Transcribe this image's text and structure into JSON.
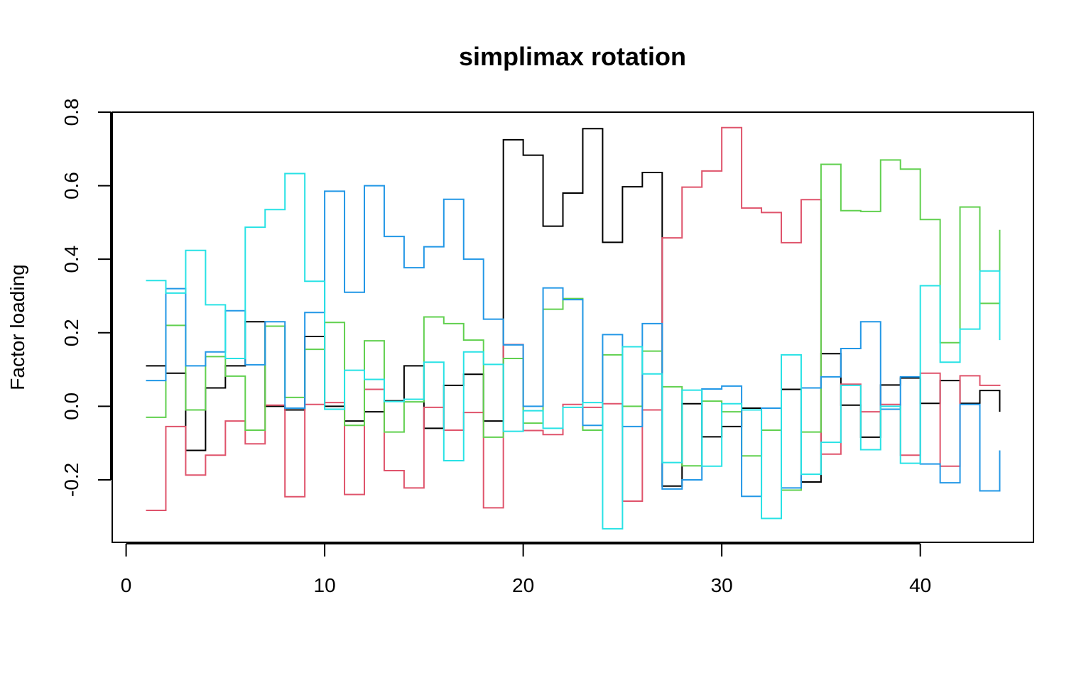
{
  "chart_data": {
    "type": "line",
    "style": "step",
    "title": "simplimax rotation",
    "xlabel": "",
    "ylabel": "Factor loading",
    "xlim": [
      -0.7,
      45.7
    ],
    "ylim": [
      -0.37,
      0.8
    ],
    "x_ticks": [
      0,
      10,
      20,
      30,
      40
    ],
    "x_tick_labels": [
      "0",
      "10",
      "20",
      "30",
      "40"
    ],
    "y_ticks": [
      -0.2,
      0.0,
      0.2,
      0.4,
      0.6,
      0.8
    ],
    "y_tick_labels": [
      "-0.2",
      "0.0",
      "0.2",
      "0.4",
      "0.6",
      "0.8"
    ],
    "grid": false,
    "x": [
      1,
      2,
      3,
      4,
      5,
      6,
      7,
      8,
      9,
      10,
      11,
      12,
      13,
      14,
      15,
      16,
      17,
      18,
      19,
      20,
      21,
      22,
      23,
      24,
      25,
      26,
      27,
      28,
      29,
      30,
      31,
      32,
      33,
      34,
      35,
      36,
      37,
      38,
      39,
      40,
      41,
      42,
      43,
      44
    ],
    "series": [
      {
        "color": "#000000",
        "values": [
          0.11,
          0.09,
          -0.12,
          0.05,
          0.11,
          0.23,
          0.0,
          -0.01,
          0.19,
          0.0,
          -0.04,
          -0.015,
          0.015,
          0.11,
          -0.06,
          0.057,
          0.087,
          -0.04,
          0.725,
          0.683,
          0.49,
          0.58,
          0.755,
          0.446,
          0.597,
          0.636,
          -0.217,
          0.007,
          -0.083,
          -0.055,
          -0.005,
          -0.005,
          0.046,
          -0.206,
          0.143,
          0.003,
          -0.084,
          0.058,
          0.077,
          0.008,
          0.07,
          0.008,
          0.043,
          -0.015
        ]
      },
      {
        "color": "#DF536B",
        "values": [
          -0.283,
          -0.055,
          -0.187,
          -0.133,
          -0.04,
          -0.102,
          0.003,
          -0.246,
          0.005,
          0.01,
          -0.24,
          0.046,
          -0.175,
          -0.222,
          -0.003,
          -0.065,
          -0.017,
          -0.276,
          0.168,
          -0.066,
          -0.077,
          0.005,
          -0.003,
          0.007,
          -0.258,
          -0.01,
          0.458,
          0.596,
          0.64,
          0.758,
          0.539,
          0.527,
          0.445,
          0.562,
          -0.13,
          0.06,
          -0.015,
          0.005,
          -0.133,
          0.09,
          -0.163,
          0.083,
          0.057,
          0.055
        ]
      },
      {
        "color": "#61D04F",
        "values": [
          -0.03,
          0.22,
          -0.01,
          0.135,
          0.082,
          -0.065,
          0.218,
          0.024,
          0.155,
          0.228,
          -0.052,
          0.178,
          -0.07,
          0.012,
          0.243,
          0.225,
          0.18,
          -0.084,
          0.13,
          -0.046,
          0.264,
          0.293,
          -0.065,
          0.14,
          0.0,
          0.15,
          0.053,
          -0.162,
          0.014,
          -0.015,
          -0.135,
          -0.065,
          -0.228,
          -0.07,
          0.658,
          0.532,
          0.53,
          0.67,
          0.645,
          0.508,
          0.173,
          0.542,
          0.28,
          0.48
        ]
      },
      {
        "color": "#2297E6",
        "values": [
          0.07,
          0.32,
          0.11,
          0.148,
          0.26,
          0.113,
          0.23,
          -0.005,
          0.255,
          0.585,
          0.31,
          0.6,
          0.462,
          0.377,
          0.434,
          0.563,
          0.4,
          0.237,
          0.167,
          0.0,
          0.322,
          0.29,
          -0.052,
          0.195,
          -0.055,
          0.225,
          -0.225,
          -0.2,
          0.047,
          0.055,
          -0.245,
          -0.005,
          -0.222,
          0.05,
          0.08,
          0.157,
          0.23,
          -0.008,
          0.08,
          -0.157,
          -0.208,
          0.005,
          -0.23,
          -0.12
        ]
      },
      {
        "color": "#28E2E5",
        "values": [
          0.342,
          0.308,
          0.424,
          0.276,
          0.13,
          0.487,
          0.535,
          0.633,
          0.34,
          -0.008,
          0.098,
          0.073,
          0.013,
          0.019,
          0.12,
          -0.148,
          0.148,
          0.114,
          -0.068,
          -0.012,
          -0.06,
          -0.003,
          0.01,
          -0.333,
          0.162,
          0.088,
          -0.153,
          0.044,
          -0.163,
          0.007,
          -0.01,
          -0.305,
          0.14,
          -0.185,
          -0.098,
          0.057,
          -0.118,
          0.0,
          -0.155,
          0.328,
          0.12,
          0.21,
          0.368,
          0.18
        ]
      }
    ]
  }
}
